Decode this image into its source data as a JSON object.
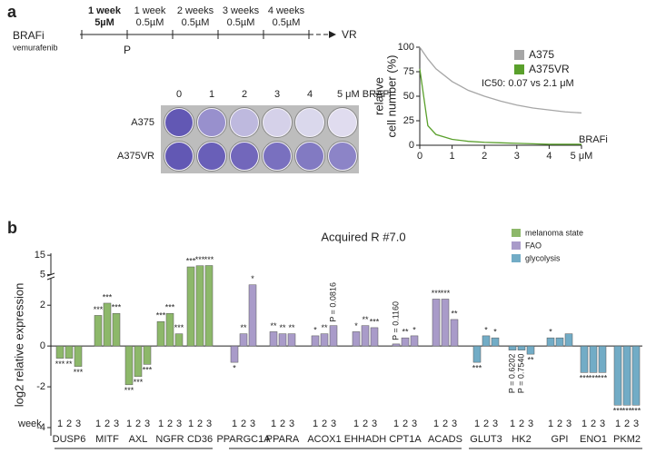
{
  "panels": [
    "a",
    "b"
  ],
  "timeline": {
    "drug": "BRAFi",
    "drug_name": "vemurafenib",
    "passage": "P",
    "end": "VR",
    "steps": [
      {
        "duration": "1 week",
        "dose": "5µM"
      },
      {
        "duration": "1 week",
        "dose": "0.5µM"
      },
      {
        "duration": "2 weeks",
        "dose": "0.5µM"
      },
      {
        "duration": "3 weeks",
        "dose": "0.5µM"
      },
      {
        "duration": "4 weeks",
        "dose": "0.5µM"
      }
    ]
  },
  "plates": {
    "doses": [
      "0",
      "1",
      "2",
      "3",
      "4",
      "5 μM BRAFi"
    ],
    "lines": [
      "A375",
      "A375VR"
    ]
  },
  "chart_data": [
    {
      "type": "line",
      "y_label": [
        "relative",
        "cell number (%)"
      ],
      "x_label": "BRAFi",
      "annotation": "IC50: 0.07 vs 2.1 μM",
      "x": [
        0,
        0.25,
        0.5,
        1,
        1.5,
        2,
        2.5,
        3,
        3.5,
        4,
        4.5,
        5
      ],
      "series": [
        {
          "name": "A375",
          "color": "#a6a6a6",
          "values": [
            100,
            88,
            78,
            65,
            56,
            50,
            45,
            41,
            38,
            36,
            34,
            33
          ]
        },
        {
          "name": "A375VR",
          "color": "#5aa02c",
          "values": [
            78,
            20,
            11,
            6,
            4,
            3,
            2.5,
            2,
            1.5,
            1,
            1,
            1
          ]
        }
      ],
      "xlim": [
        0,
        5
      ],
      "ylim": [
        0,
        100
      ],
      "xticks": [
        0,
        1,
        2,
        3,
        4,
        {
          "value": 5,
          "label": "5 μM"
        }
      ],
      "yticks": [
        0,
        25,
        50,
        75,
        100
      ]
    },
    {
      "type": "bar",
      "title": "Acquired R #7.0",
      "y_label": "log2 relative expression",
      "x_label": "week",
      "categories": [
        "DUSP6",
        "MITF",
        "AXL",
        "NGFR",
        "CD36",
        "PPARGC1A",
        "PPARA",
        "ACOX1",
        "EHHADH",
        "CPT1A",
        "ACADS",
        "GLUT3",
        "HK2",
        "GPI",
        "ENO1",
        "PKM2"
      ],
      "colors": [
        "#8db86a",
        "#8db86a",
        "#8db86a",
        "#8db86a",
        "#8db86a",
        "#a99bc9",
        "#a99bc9",
        "#a99bc9",
        "#a99bc9",
        "#a99bc9",
        "#a99bc9",
        "#72acc6",
        "#72acc6",
        "#72acc6",
        "#72acc6",
        "#72acc6"
      ],
      "legend": [
        {
          "name": "melanoma state",
          "color": "#8db86a"
        },
        {
          "name": "FAO",
          "color": "#a99bc9"
        },
        {
          "name": "glycolysis",
          "color": "#72acc6"
        }
      ],
      "series": [
        {
          "name": "1",
          "values": [
            -0.6,
            1.5,
            -1.9,
            1.2,
            9.0,
            -0.8,
            0.7,
            0.5,
            0.7,
            0.1,
            2.3,
            -0.8,
            -0.2,
            0.4,
            -1.3,
            -2.9
          ],
          "significance": [
            "***",
            "***",
            "***",
            "***",
            "***",
            "*",
            "**",
            "*",
            "*",
            "P = 0.1160",
            "***",
            "***",
            "P = 0.6202",
            "*",
            "***",
            "***"
          ]
        },
        {
          "name": "2",
          "values": [
            -0.6,
            2.1,
            -1.5,
            1.6,
            9.6,
            0.6,
            0.6,
            0.6,
            1.0,
            0.4,
            2.3,
            0.5,
            -0.2,
            0.4,
            -1.3,
            -2.9
          ],
          "significance": [
            "**",
            "***",
            "***",
            "***",
            "***",
            "**",
            "**",
            "**",
            "**",
            "**",
            "***",
            "*",
            "P = 0.7540",
            null,
            "***",
            "***"
          ]
        },
        {
          "name": "3",
          "values": [
            -1.0,
            1.6,
            -0.9,
            0.6,
            9.7,
            3.0,
            0.6,
            1.0,
            0.9,
            0.5,
            1.3,
            0.4,
            -0.4,
            0.6,
            -1.3,
            -2.9
          ],
          "significance": [
            "***",
            "***",
            "***",
            "***",
            "***",
            "*",
            "**",
            "P = 0.0816",
            "***",
            "*",
            "**",
            "*",
            "**",
            null,
            "***",
            "***"
          ]
        }
      ],
      "ylim": [
        -4.4,
        16
      ],
      "axis_break": [
        3.3,
        4.8
      ],
      "yticks": [
        -4,
        -2,
        0,
        2,
        5,
        15
      ]
    }
  ]
}
